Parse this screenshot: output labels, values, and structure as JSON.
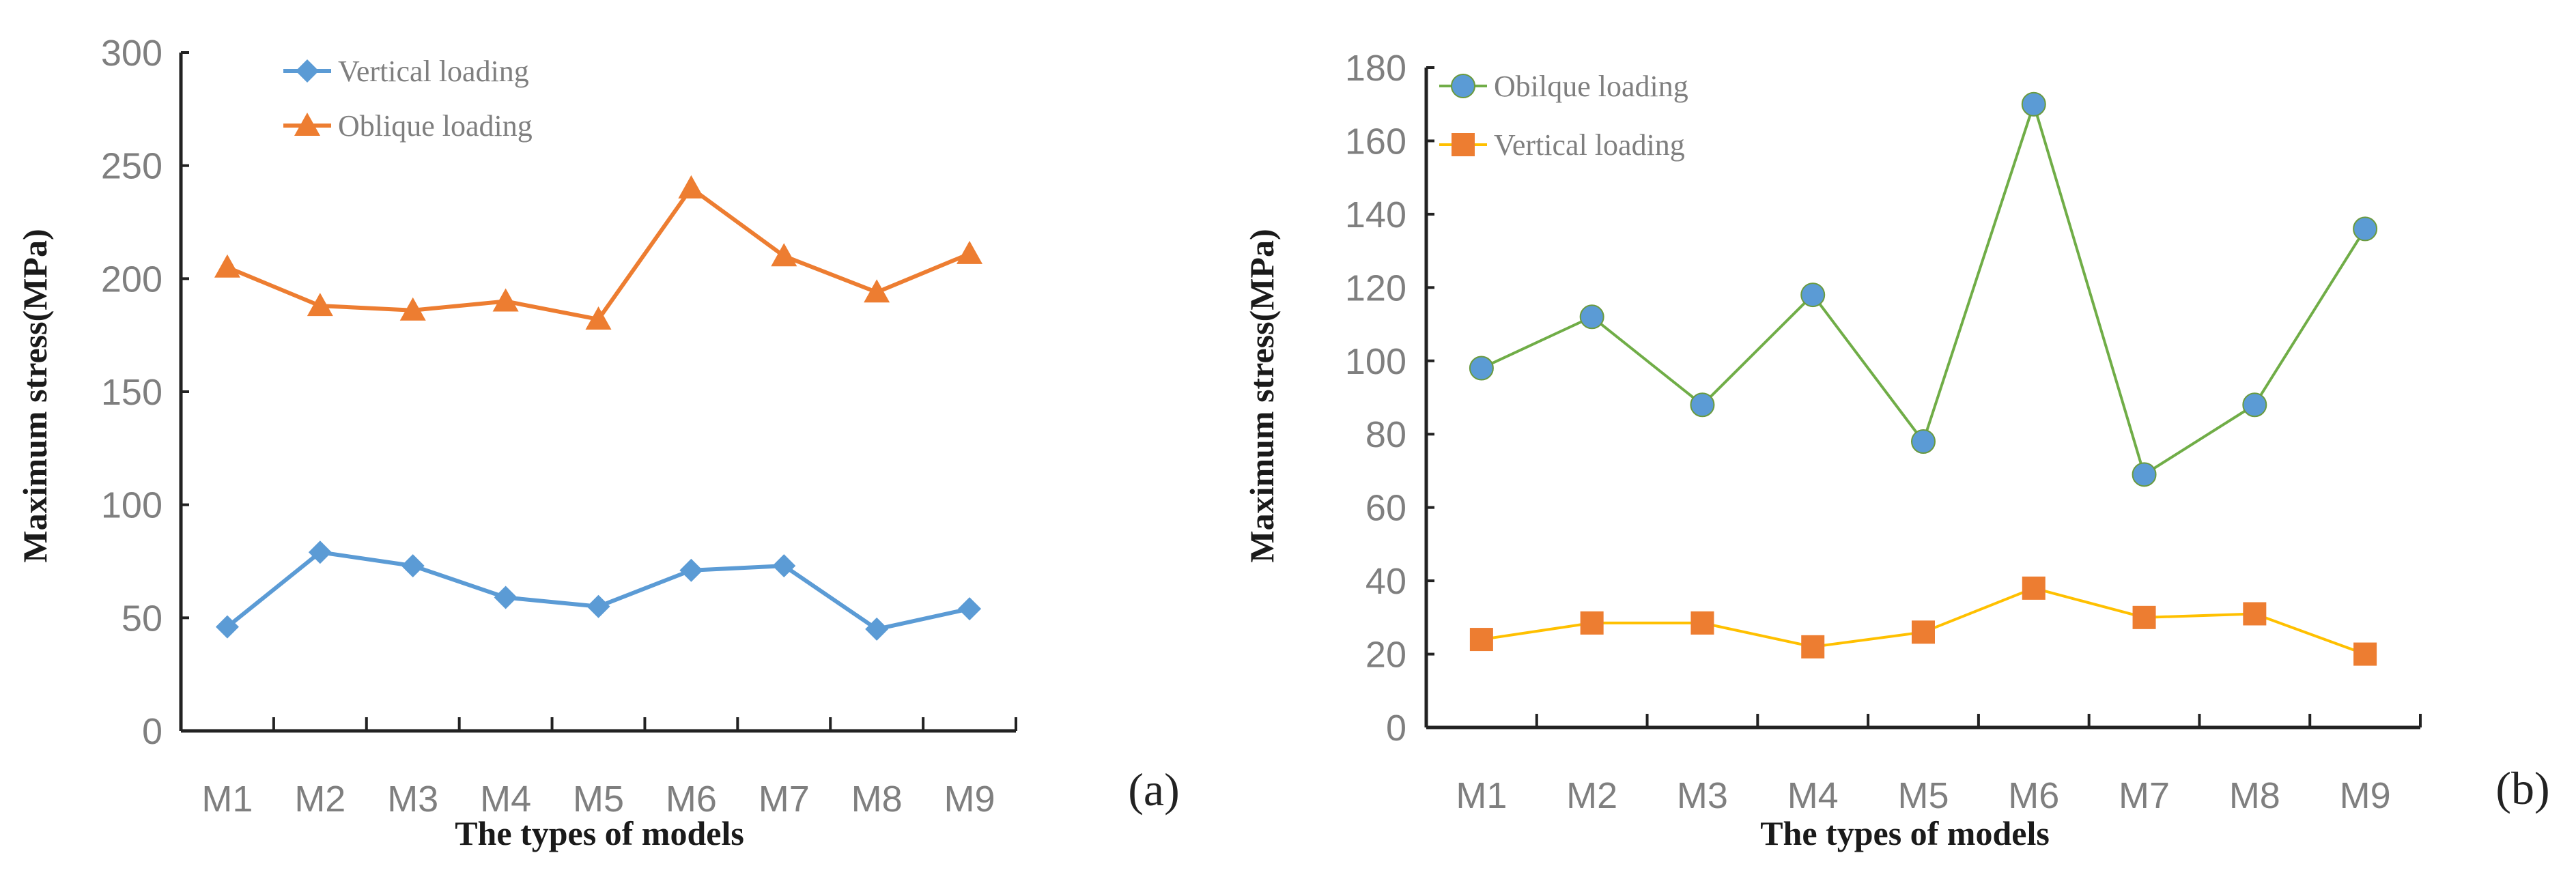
{
  "chart_data": [
    {
      "type": "line",
      "panel_label": "(a)",
      "xlabel": "The types of models",
      "ylabel": "Maximum stress(MPa)",
      "categories": [
        "M1",
        "M2",
        "M3",
        "M4",
        "M5",
        "M6",
        "M7",
        "M8",
        "M9"
      ],
      "ylim": [
        0,
        300
      ],
      "yticks": [
        0,
        50,
        100,
        150,
        200,
        250,
        300
      ],
      "grid": false,
      "legend_position": "top-left",
      "series": [
        {
          "name": "Vertical loading",
          "color": "#5b9bd5",
          "marker": "diamond",
          "marker_color": "#5b9bd5",
          "values": [
            46,
            79,
            73,
            59,
            55,
            71,
            73,
            45,
            54
          ]
        },
        {
          "name": "Oblique loading",
          "color": "#ed7d31",
          "marker": "triangle",
          "marker_color": "#ed7d31",
          "values": [
            205,
            188,
            186,
            190,
            182,
            240,
            210,
            194,
            211
          ]
        }
      ]
    },
    {
      "type": "line",
      "panel_label": "(b)",
      "xlabel": "The types of models",
      "ylabel": "Maximum stress(MPa)",
      "categories": [
        "M1",
        "M2",
        "M3",
        "M4",
        "M5",
        "M6",
        "M7",
        "M8",
        "M9"
      ],
      "ylim": [
        0,
        180
      ],
      "yticks": [
        0,
        20,
        40,
        60,
        80,
        100,
        120,
        140,
        160,
        180
      ],
      "grid": false,
      "legend_position": "top-left",
      "series": [
        {
          "name": "Obilque loading",
          "color": "#70ad47",
          "marker": "circle",
          "marker_color": "#5b9bd5",
          "values": [
            98,
            112,
            88,
            118,
            78,
            170,
            69,
            88,
            136
          ]
        },
        {
          "name": "Vertical loading",
          "color": "#ffc000",
          "marker": "square",
          "marker_color": "#ed7d31",
          "values": [
            24,
            28.5,
            28.5,
            22,
            26,
            38,
            30,
            31,
            20
          ]
        }
      ]
    }
  ]
}
